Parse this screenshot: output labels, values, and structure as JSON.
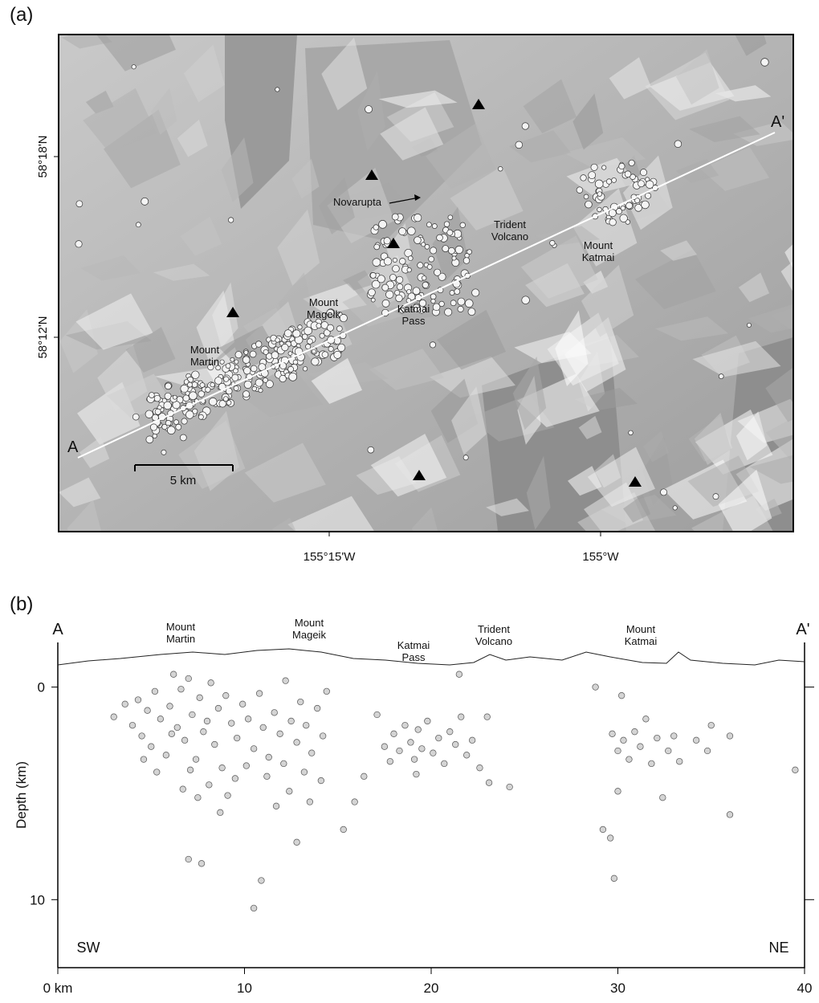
{
  "panel_a": {
    "label": "(a)",
    "lat_ticks": [
      "58°18'N",
      "58°12'N"
    ],
    "lon_ticks": [
      "155°15'W",
      "155°W"
    ],
    "labels": [
      {
        "lines": [
          "Novarupta"
        ]
      },
      {
        "lines": [
          "Trident",
          "Volcano"
        ]
      },
      {
        "lines": [
          "Mount",
          "Katmai"
        ]
      },
      {
        "lines": [
          "Mount",
          "Mageik"
        ]
      },
      {
        "lines": [
          "Katmai",
          "Pass"
        ]
      },
      {
        "lines": [
          "Mount",
          "Martin"
        ]
      }
    ],
    "profile_ends": [
      "A",
      "A'"
    ],
    "scale_bar": "5 km"
  },
  "chart_data": {
    "type": "scatter",
    "panel_label": "(b)",
    "ylabel": "Depth (km)",
    "xlim": [
      0,
      40
    ],
    "ylim": [
      -2.1,
      13.2
    ],
    "invert_y": true,
    "xticks": [
      {
        "value": 0,
        "label": "0 km"
      },
      10,
      20,
      30,
      40
    ],
    "yticks": [
      0,
      10
    ],
    "color": "#d4d4d4",
    "annotations": [
      {
        "lines": [
          "A"
        ]
      },
      {
        "lines": [
          "A'"
        ]
      },
      {
        "lines": [
          "Mount",
          "Martin"
        ]
      },
      {
        "lines": [
          "Mount",
          "Mageik"
        ]
      },
      {
        "lines": [
          "Katmai",
          "Pass"
        ]
      },
      {
        "lines": [
          "Trident",
          "Volcano"
        ]
      },
      {
        "lines": [
          "Mount",
          "Katmai"
        ]
      },
      {
        "lines": [
          "SW"
        ]
      },
      {
        "lines": [
          "NE"
        ]
      }
    ],
    "x": [
      3,
      3.6,
      4,
      4.3,
      4.5,
      4.8,
      5,
      5.2,
      5.5,
      5.8,
      6,
      6.2,
      6.4,
      6.6,
      6.8,
      7,
      7.2,
      7.4,
      7.6,
      7.8,
      8,
      8.2,
      8.4,
      8.6,
      8.8,
      9,
      9.3,
      9.6,
      9.9,
      10.2,
      10.5,
      10.8,
      11,
      11.3,
      11.6,
      11.9,
      12.2,
      12.5,
      12.8,
      13,
      13.3,
      13.6,
      13.9,
      14.2,
      14.4,
      6.1,
      7.1,
      8.1,
      9.1,
      11.2,
      12.4,
      13.5,
      5.3,
      6.7,
      8.7,
      10.1,
      12.1,
      14.1,
      4.6,
      7.5,
      9.5,
      11.7,
      13.2,
      7,
      7.7,
      10.9,
      10.5,
      12.8,
      15.3,
      15.9,
      16.4,
      17.1,
      17.5,
      17.8,
      18,
      18.3,
      18.6,
      18.9,
      19.1,
      19.3,
      19.5,
      19.8,
      20.1,
      20.4,
      20.7,
      21,
      21.3,
      21.6,
      21.9,
      22.2,
      22.6,
      23,
      23.1,
      24.2,
      21.5,
      19.2,
      28.8,
      29.2,
      29.6,
      29.8,
      30,
      30.2,
      29.7,
      30,
      30.3,
      30.6,
      30.9,
      31.2,
      31.5,
      31.8,
      32.1,
      32.4,
      32.7,
      33,
      33.3,
      34.2,
      35,
      34.8,
      36,
      36,
      39.5
    ],
    "y": [
      1.4,
      0.8,
      1.8,
      0.6,
      2.3,
      1.1,
      2.8,
      0.2,
      1.5,
      3.2,
      0.9,
      -0.6,
      1.9,
      0.1,
      2.5,
      -0.4,
      1.3,
      3.4,
      0.5,
      2.1,
      1.6,
      -0.2,
      2.7,
      1,
      3.8,
      0.4,
      1.7,
      2.4,
      0.8,
      1.5,
      2.9,
      0.3,
      1.9,
      3.3,
      1.2,
      2.2,
      -0.3,
      1.6,
      2.6,
      0.7,
      1.8,
      3.1,
      1,
      2.3,
      0.2,
      2.2,
      3.9,
      4.6,
      5.1,
      4.2,
      4.9,
      5.4,
      4,
      4.8,
      5.9,
      3.7,
      3.6,
      4.4,
      3.4,
      5.2,
      4.3,
      5.6,
      4,
      8.1,
      8.3,
      9.1,
      10.4,
      7.3,
      6.7,
      5.4,
      4.2,
      1.3,
      2.8,
      3.5,
      2.2,
      3,
      1.8,
      2.6,
      3.4,
      2,
      2.9,
      1.6,
      3.1,
      2.4,
      3.6,
      2.1,
      2.7,
      1.4,
      3.2,
      2.5,
      3.8,
      1.4,
      4.5,
      4.7,
      -0.6,
      4.1,
      0,
      6.7,
      7.1,
      9,
      4.9,
      0.4,
      2.2,
      3,
      2.5,
      3.4,
      2.1,
      2.8,
      1.5,
      3.6,
      2.4,
      5.2,
      3,
      2.3,
      3.5,
      2.5,
      1.8,
      3,
      2.3,
      6,
      3.9
    ]
  }
}
